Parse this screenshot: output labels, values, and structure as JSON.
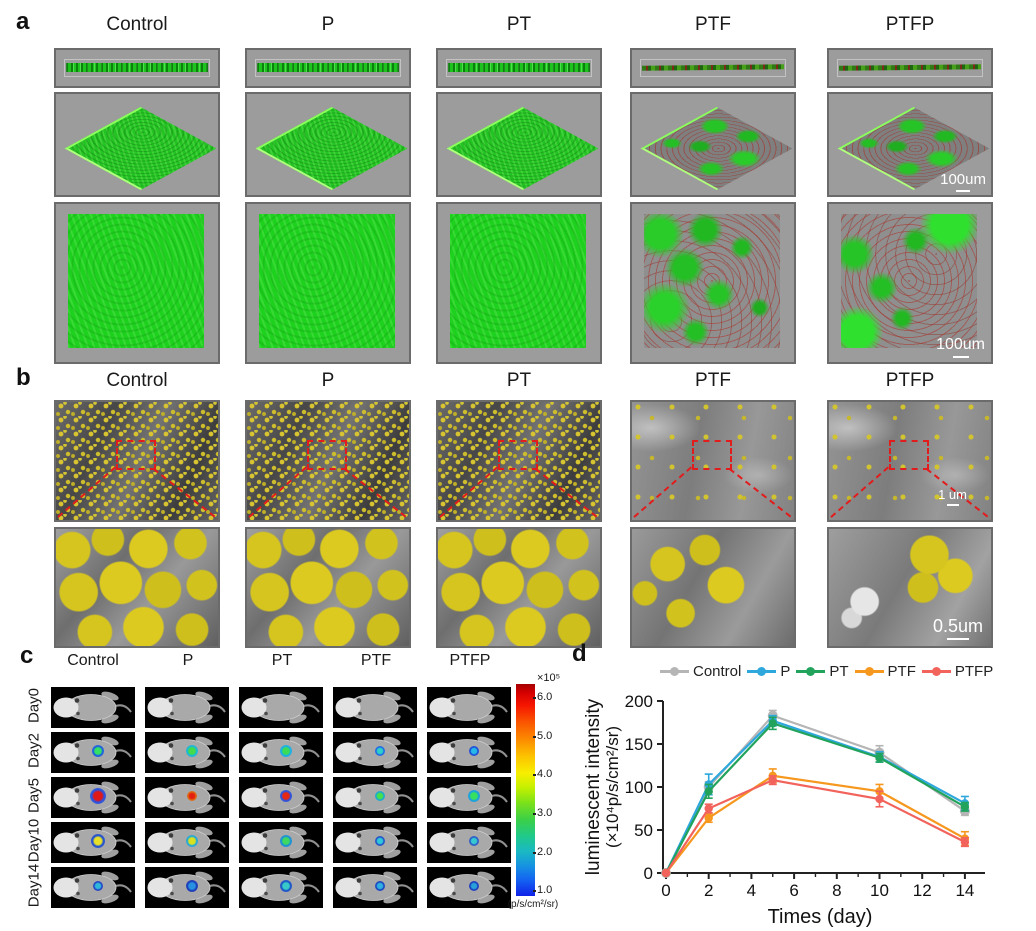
{
  "figure": {
    "panel_a": {
      "label": "a",
      "columns": [
        "Control",
        "P",
        "PT",
        "PTF",
        "PTFP"
      ],
      "scalebars": {
        "row2": "100um",
        "row3": "100um"
      }
    },
    "panel_b": {
      "label": "b",
      "columns": [
        "Control",
        "P",
        "PT",
        "PTF",
        "PTFP"
      ],
      "scalebars": {
        "row1": "1 um",
        "row2": "0.5um"
      }
    },
    "panel_c": {
      "label": "c",
      "columns": [
        "Control",
        "P",
        "PT",
        "PTF",
        "PTFP"
      ],
      "rows": [
        "Day0",
        "Day2",
        "Day5",
        "Day10",
        "Day14"
      ],
      "colorbar": {
        "exponent_label": "×10⁵",
        "ticks": [
          "6.0",
          "5.0",
          "4.0",
          "3.0",
          "2.0",
          "1.0"
        ],
        "unit_label": "(p/s/cm²/sr)",
        "colors_top_to_bottom": [
          "#c00000",
          "#ff6a00",
          "#ffd800",
          "#8ce600",
          "#20c880",
          "#1690e0",
          "#1022e8"
        ]
      },
      "spots": [
        [
          null,
          null,
          null,
          null,
          null
        ],
        [
          {
            "inner": "#35e065",
            "outer": "#1b5ee0",
            "r": 6
          },
          {
            "inner": "#44dc4a",
            "outer": "#18b8d8",
            "r": 6
          },
          {
            "inner": "#3ddc56",
            "outer": "#17b0e8",
            "r": 6
          },
          {
            "inner": "#2fd0c8",
            "outer": "#1d68e8",
            "r": 5
          },
          {
            "inner": "#28b8e8",
            "outer": "#1848d8",
            "r": 5
          }
        ],
        [
          {
            "inner": "#e01818",
            "outer": "#2a52e0",
            "r": 8
          },
          {
            "inner": "#e32010",
            "outer": "#e06810",
            "r": 5
          },
          {
            "inner": "#e82812",
            "outer": "#2a52e0",
            "r": 6
          },
          {
            "inner": "#48e048",
            "outer": "#18a8d0",
            "r": 5
          },
          {
            "inner": "#38e060",
            "outer": "#18a0e0",
            "r": 6
          }
        ],
        [
          {
            "inner": "#e8e028",
            "outer": "#2050d0",
            "r": 7
          },
          {
            "inner": "#d8e020",
            "outer": "#20a8d8",
            "r": 6
          },
          {
            "inner": "#40d860",
            "outer": "#1890d8",
            "r": 6
          },
          {
            "inner": "#30c8d8",
            "outer": "#2050c8",
            "r": 5
          },
          {
            "inner": "#38c8d0",
            "outer": "#2858c8",
            "r": 5
          }
        ],
        [
          {
            "inner": "#30b8d8",
            "outer": "#2040c8",
            "r": 5
          },
          {
            "inner": "#2890e0",
            "outer": "#1838b8",
            "r": 6
          },
          {
            "inner": "#38c8c8",
            "outer": "#1850c8",
            "r": 6
          },
          {
            "inner": "#30b0e0",
            "outer": "#1840c0",
            "r": 5
          },
          {
            "inner": "#28a0d8",
            "outer": "#1838c0",
            "r": 5
          }
        ]
      ]
    },
    "panel_d": {
      "label": "d"
    }
  },
  "chart_data": {
    "type": "line",
    "x": [
      0,
      2,
      5,
      10,
      14
    ],
    "series": [
      {
        "name": "Control",
        "color": "#b5b5b5",
        "values": [
          0,
          100,
          183,
          140,
          72
        ],
        "errors": [
          0,
          6,
          6,
          8,
          5
        ]
      },
      {
        "name": "P",
        "color": "#2ea7dc",
        "values": [
          0,
          103,
          177,
          135,
          81
        ],
        "errors": [
          0,
          12,
          6,
          6,
          8
        ]
      },
      {
        "name": "PT",
        "color": "#21a35c",
        "values": [
          0,
          95,
          174,
          134,
          77
        ],
        "errors": [
          0,
          8,
          7,
          5,
          5
        ]
      },
      {
        "name": "PTF",
        "color": "#f6971e",
        "values": [
          0,
          64,
          113,
          95,
          40
        ],
        "errors": [
          0,
          5,
          8,
          8,
          8
        ]
      },
      {
        "name": "PTFP",
        "color": "#f2635c",
        "values": [
          0,
          75,
          108,
          86,
          36
        ],
        "errors": [
          0,
          5,
          5,
          9,
          5
        ]
      }
    ],
    "title": "",
    "xlabel": "Times (day)",
    "ylabel_line1": "luminescent intensity",
    "ylabel_line2": "(×10⁴p/s/cm²/sr)",
    "xticks": [
      0,
      2,
      4,
      6,
      8,
      10,
      12,
      14
    ],
    "yticks": [
      0,
      50,
      100,
      150,
      200
    ],
    "xlim": [
      0,
      15
    ],
    "ylim": [
      0,
      200
    ],
    "grid": false,
    "legend_position": "top"
  }
}
